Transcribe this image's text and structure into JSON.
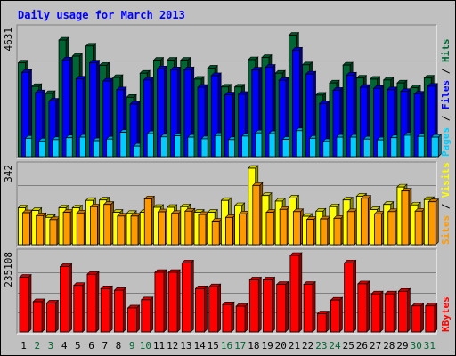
{
  "chart_data": {
    "type": "bar",
    "title": "Daily usage for March 2013",
    "categories": [
      "1",
      "2",
      "3",
      "4",
      "5",
      "6",
      "7",
      "8",
      "9",
      "10",
      "11",
      "12",
      "13",
      "14",
      "15",
      "16",
      "17",
      "18",
      "19",
      "20",
      "21",
      "22",
      "23",
      "24",
      "25",
      "26",
      "27",
      "28",
      "29",
      "30",
      "31"
    ],
    "weekend_days": [
      "2",
      "3",
      "9",
      "10",
      "16",
      "17",
      "23",
      "24",
      "30",
      "31"
    ],
    "colors": {
      "hits": "#006633",
      "files": "#0000ff",
      "pages": "#00ccff",
      "visits": "#ffff00",
      "sites": "#ff9900",
      "kbytes": "#ff0000",
      "weekday_label": "#000000",
      "weekend_label": "#006633",
      "title": "#0000ff"
    },
    "panels": [
      {
        "id": "hits_files_pages",
        "max_label": "4631",
        "ylim": [
          0,
          4631
        ],
        "legend": [
          "Pages",
          "Files",
          "Hits"
        ],
        "series": [
          {
            "name": "Hits",
            "values": [
              3460,
              2590,
              2330,
              4300,
              3710,
              4080,
              3370,
              2920,
              2190,
              3080,
              3560,
              3560,
              3560,
              2860,
              3270,
              2570,
              2570,
              3580,
              3660,
              3080,
              4480,
              3390,
              2270,
              2720,
              3380,
              2900,
              2860,
              2830,
              2720,
              2540,
              2900
            ]
          },
          {
            "name": "Files",
            "values": [
              3110,
              2360,
              2050,
              3570,
              2870,
              3460,
              2790,
              2470,
              1940,
              2830,
              3240,
              3210,
              3210,
              2560,
              2990,
              2280,
              2300,
              3200,
              3300,
              2820,
              3930,
              3050,
              1960,
              2450,
              3010,
              2560,
              2520,
              2470,
              2410,
              2310,
              2600
            ]
          },
          {
            "name": "Pages",
            "values": [
              680,
              580,
              630,
              700,
              720,
              590,
              650,
              900,
              390,
              850,
              730,
              770,
              720,
              660,
              780,
              630,
              760,
              880,
              850,
              640,
              960,
              680,
              560,
              720,
              720,
              650,
              620,
              700,
              790,
              750,
              720
            ]
          }
        ]
      },
      {
        "id": "visits_sites",
        "max_label": "342",
        "ylim": [
          0,
          342
        ],
        "legend": [
          "Sites",
          "Visits"
        ],
        "series": [
          {
            "name": "Visits",
            "values": [
              165,
              153,
              122,
              165,
              165,
              198,
              200,
              145,
              140,
              145,
              167,
              167,
              170,
              145,
              145,
              198,
              175,
              342,
              220,
              195,
              209,
              127,
              150,
              170,
              200,
              217,
              157,
              180,
              258,
              178,
              202
            ]
          },
          {
            "name": "Sites",
            "values": [
              143,
              130,
              112,
              145,
              142,
              170,
              180,
              128,
              128,
              205,
              147,
              140,
              150,
              135,
              105,
              122,
              138,
              265,
              145,
              158,
              148,
              113,
              115,
              118,
              148,
              208,
              138,
              148,
              240,
              150,
              192
            ]
          }
        ]
      },
      {
        "id": "kbytes",
        "max_label": "235108",
        "ylim": [
          0,
          235108
        ],
        "legend": [
          "KBytes"
        ],
        "series": [
          {
            "name": "KBytes",
            "values": [
              168000,
              93000,
              89000,
              201000,
              143000,
              177000,
              133000,
              128000,
              74000,
              99000,
              183000,
              183000,
              212000,
              133000,
              139000,
              84000,
              79000,
              160000,
              160000,
              146000,
              235108,
              146000,
              56000,
              98000,
              212000,
              148000,
              117000,
              117000,
              125000,
              80000,
              80000
            ]
          }
        ]
      }
    ]
  }
}
